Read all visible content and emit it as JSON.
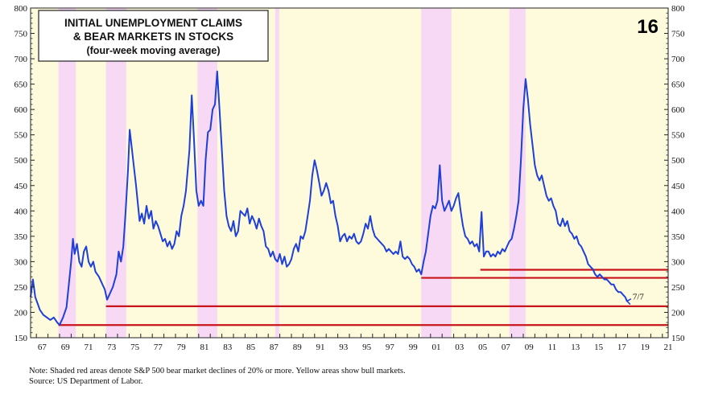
{
  "chart_data": {
    "type": "line",
    "title": "INITIAL UNEMPLOYMENT CLAIMS",
    "title_line2": "& BEAR MARKETS IN STOCKS",
    "subtitle": "(four-week moving average)",
    "page_number": "16",
    "end_label": "7/7",
    "note": "Note: Shaded red areas denote S&P 500 bear market declines of 20% or more. Yellow areas show bull markets.",
    "source": "Source: US Department of Labor.",
    "ylim": [
      150,
      800
    ],
    "y_ticks": [
      "150",
      "200",
      "250",
      "300",
      "350",
      "400",
      "450",
      "500",
      "550",
      "600",
      "650",
      "700",
      "750",
      "800"
    ],
    "xlim": [
      1966.5,
      2021.5
    ],
    "x_tick_labels": [
      "67",
      "69",
      "71",
      "73",
      "75",
      "77",
      "79",
      "81",
      "83",
      "85",
      "87",
      "89",
      "91",
      "93",
      "95",
      "97",
      "99",
      "01",
      "03",
      "05",
      "07",
      "09",
      "11",
      "13",
      "15",
      "17",
      "19",
      "21"
    ],
    "colors": {
      "bull": "#fdfbdc",
      "bear": "#f7d9f5",
      "line": "#1f3fd8",
      "ref_line": "#c8141b"
    },
    "bear_markets": [
      [
        1968.9,
        1970.4
      ],
      [
        1973.0,
        1974.75
      ],
      [
        1980.9,
        1982.6
      ],
      [
        1987.6,
        1987.95
      ],
      [
        2000.2,
        2002.8
      ],
      [
        2007.8,
        2009.2
      ]
    ],
    "reference_lines": [
      {
        "y": 175,
        "x_start": 1968.9,
        "x_end": 2021.5
      },
      {
        "y": 212,
        "x_start": 1973.0,
        "x_end": 2021.5
      },
      {
        "y": 268,
        "x_start": 2000.2,
        "x_end": 2021.5
      },
      {
        "y": 284,
        "x_start": 2005.3,
        "x_end": 2021.5
      }
    ],
    "series": [
      {
        "values": [
          [
            1966.5,
            230
          ],
          [
            1966.7,
            265
          ],
          [
            1966.9,
            230
          ],
          [
            1967.1,
            218
          ],
          [
            1967.3,
            205
          ],
          [
            1967.6,
            195
          ],
          [
            1967.9,
            190
          ],
          [
            1968.2,
            185
          ],
          [
            1968.5,
            190
          ],
          [
            1968.8,
            180
          ],
          [
            1969.0,
            175
          ],
          [
            1969.3,
            190
          ],
          [
            1969.6,
            210
          ],
          [
            1969.8,
            255
          ],
          [
            1970.0,
            300
          ],
          [
            1970.15,
            345
          ],
          [
            1970.3,
            315
          ],
          [
            1970.5,
            335
          ],
          [
            1970.7,
            300
          ],
          [
            1970.9,
            290
          ],
          [
            1971.1,
            320
          ],
          [
            1971.3,
            330
          ],
          [
            1971.5,
            300
          ],
          [
            1971.7,
            290
          ],
          [
            1971.9,
            300
          ],
          [
            1972.1,
            280
          ],
          [
            1972.4,
            270
          ],
          [
            1972.7,
            255
          ],
          [
            1972.9,
            245
          ],
          [
            1973.1,
            225
          ],
          [
            1973.3,
            235
          ],
          [
            1973.6,
            250
          ],
          [
            1973.9,
            275
          ],
          [
            1974.1,
            320
          ],
          [
            1974.3,
            300
          ],
          [
            1974.5,
            330
          ],
          [
            1974.7,
            400
          ],
          [
            1974.9,
            480
          ],
          [
            1975.05,
            560
          ],
          [
            1975.2,
            530
          ],
          [
            1975.35,
            500
          ],
          [
            1975.6,
            450
          ],
          [
            1975.9,
            380
          ],
          [
            1976.1,
            395
          ],
          [
            1976.3,
            375
          ],
          [
            1976.5,
            410
          ],
          [
            1976.7,
            385
          ],
          [
            1976.9,
            400
          ],
          [
            1977.1,
            365
          ],
          [
            1977.3,
            380
          ],
          [
            1977.5,
            370
          ],
          [
            1977.7,
            355
          ],
          [
            1977.9,
            340
          ],
          [
            1978.1,
            345
          ],
          [
            1978.3,
            330
          ],
          [
            1978.5,
            340
          ],
          [
            1978.7,
            325
          ],
          [
            1978.9,
            335
          ],
          [
            1979.1,
            360
          ],
          [
            1979.3,
            350
          ],
          [
            1979.5,
            390
          ],
          [
            1979.7,
            410
          ],
          [
            1979.9,
            440
          ],
          [
            1980.2,
            520
          ],
          [
            1980.4,
            628
          ],
          [
            1980.6,
            540
          ],
          [
            1980.8,
            440
          ],
          [
            1981.0,
            410
          ],
          [
            1981.2,
            420
          ],
          [
            1981.4,
            410
          ],
          [
            1981.6,
            500
          ],
          [
            1981.8,
            555
          ],
          [
            1982.0,
            560
          ],
          [
            1982.2,
            600
          ],
          [
            1982.4,
            610
          ],
          [
            1982.6,
            675
          ],
          [
            1982.8,
            600
          ],
          [
            1983.0,
            520
          ],
          [
            1983.2,
            440
          ],
          [
            1983.4,
            390
          ],
          [
            1983.6,
            370
          ],
          [
            1983.8,
            360
          ],
          [
            1984.0,
            380
          ],
          [
            1984.2,
            350
          ],
          [
            1984.4,
            360
          ],
          [
            1984.6,
            400
          ],
          [
            1984.8,
            395
          ],
          [
            1985.0,
            390
          ],
          [
            1985.2,
            405
          ],
          [
            1985.4,
            375
          ],
          [
            1985.6,
            390
          ],
          [
            1985.8,
            380
          ],
          [
            1986.0,
            365
          ],
          [
            1986.2,
            385
          ],
          [
            1986.4,
            370
          ],
          [
            1986.6,
            360
          ],
          [
            1986.8,
            330
          ],
          [
            1987.0,
            325
          ],
          [
            1987.2,
            310
          ],
          [
            1987.4,
            320
          ],
          [
            1987.6,
            305
          ],
          [
            1987.8,
            300
          ],
          [
            1988.0,
            315
          ],
          [
            1988.2,
            295
          ],
          [
            1988.4,
            310
          ],
          [
            1988.6,
            290
          ],
          [
            1988.8,
            295
          ],
          [
            1989.0,
            305
          ],
          [
            1989.2,
            325
          ],
          [
            1989.4,
            335
          ],
          [
            1989.6,
            320
          ],
          [
            1989.8,
            350
          ],
          [
            1990.0,
            345
          ],
          [
            1990.2,
            360
          ],
          [
            1990.4,
            390
          ],
          [
            1990.6,
            420
          ],
          [
            1990.8,
            470
          ],
          [
            1991.0,
            500
          ],
          [
            1991.2,
            480
          ],
          [
            1991.4,
            455
          ],
          [
            1991.6,
            430
          ],
          [
            1991.8,
            440
          ],
          [
            1992.0,
            455
          ],
          [
            1992.2,
            440
          ],
          [
            1992.4,
            415
          ],
          [
            1992.6,
            420
          ],
          [
            1992.8,
            390
          ],
          [
            1993.0,
            370
          ],
          [
            1993.2,
            340
          ],
          [
            1993.4,
            350
          ],
          [
            1993.6,
            355
          ],
          [
            1993.8,
            340
          ],
          [
            1994.0,
            350
          ],
          [
            1994.2,
            345
          ],
          [
            1994.4,
            355
          ],
          [
            1994.6,
            340
          ],
          [
            1994.8,
            335
          ],
          [
            1995.0,
            340
          ],
          [
            1995.2,
            355
          ],
          [
            1995.4,
            375
          ],
          [
            1995.6,
            365
          ],
          [
            1995.8,
            390
          ],
          [
            1996.0,
            365
          ],
          [
            1996.2,
            350
          ],
          [
            1996.4,
            345
          ],
          [
            1996.6,
            340
          ],
          [
            1996.8,
            335
          ],
          [
            1997.0,
            330
          ],
          [
            1997.2,
            320
          ],
          [
            1997.4,
            325
          ],
          [
            1997.6,
            320
          ],
          [
            1997.8,
            315
          ],
          [
            1998.0,
            320
          ],
          [
            1998.2,
            315
          ],
          [
            1998.4,
            340
          ],
          [
            1998.6,
            310
          ],
          [
            1998.8,
            305
          ],
          [
            1999.0,
            310
          ],
          [
            1999.2,
            305
          ],
          [
            1999.4,
            295
          ],
          [
            1999.6,
            290
          ],
          [
            1999.8,
            280
          ],
          [
            2000.0,
            285
          ],
          [
            2000.2,
            275
          ],
          [
            2000.4,
            300
          ],
          [
            2000.6,
            320
          ],
          [
            2000.8,
            355
          ],
          [
            2001.0,
            390
          ],
          [
            2001.2,
            410
          ],
          [
            2001.4,
            405
          ],
          [
            2001.6,
            420
          ],
          [
            2001.8,
            490
          ],
          [
            2002.0,
            420
          ],
          [
            2002.2,
            400
          ],
          [
            2002.4,
            410
          ],
          [
            2002.6,
            420
          ],
          [
            2002.8,
            400
          ],
          [
            2003.0,
            410
          ],
          [
            2003.2,
            425
          ],
          [
            2003.4,
            435
          ],
          [
            2003.6,
            400
          ],
          [
            2003.8,
            370
          ],
          [
            2004.0,
            350
          ],
          [
            2004.2,
            345
          ],
          [
            2004.4,
            335
          ],
          [
            2004.6,
            340
          ],
          [
            2004.8,
            330
          ],
          [
            2005.0,
            335
          ],
          [
            2005.2,
            320
          ],
          [
            2005.4,
            398
          ],
          [
            2005.6,
            310
          ],
          [
            2005.8,
            320
          ],
          [
            2006.0,
            320
          ],
          [
            2006.2,
            310
          ],
          [
            2006.4,
            315
          ],
          [
            2006.6,
            310
          ],
          [
            2006.8,
            320
          ],
          [
            2007.0,
            315
          ],
          [
            2007.2,
            325
          ],
          [
            2007.4,
            320
          ],
          [
            2007.6,
            330
          ],
          [
            2007.8,
            340
          ],
          [
            2008.0,
            345
          ],
          [
            2008.2,
            365
          ],
          [
            2008.4,
            390
          ],
          [
            2008.6,
            420
          ],
          [
            2008.8,
            500
          ],
          [
            2009.0,
            600
          ],
          [
            2009.2,
            660
          ],
          [
            2009.4,
            620
          ],
          [
            2009.6,
            570
          ],
          [
            2009.8,
            530
          ],
          [
            2010.0,
            490
          ],
          [
            2010.2,
            470
          ],
          [
            2010.4,
            460
          ],
          [
            2010.6,
            470
          ],
          [
            2010.8,
            450
          ],
          [
            2011.0,
            430
          ],
          [
            2011.2,
            420
          ],
          [
            2011.4,
            425
          ],
          [
            2011.6,
            410
          ],
          [
            2011.8,
            400
          ],
          [
            2012.0,
            375
          ],
          [
            2012.2,
            370
          ],
          [
            2012.4,
            385
          ],
          [
            2012.6,
            370
          ],
          [
            2012.8,
            380
          ],
          [
            2013.0,
            360
          ],
          [
            2013.2,
            355
          ],
          [
            2013.4,
            345
          ],
          [
            2013.6,
            350
          ],
          [
            2013.8,
            335
          ],
          [
            2014.0,
            330
          ],
          [
            2014.2,
            320
          ],
          [
            2014.4,
            310
          ],
          [
            2014.6,
            295
          ],
          [
            2014.8,
            290
          ],
          [
            2015.0,
            285
          ],
          [
            2015.2,
            275
          ],
          [
            2015.4,
            270
          ],
          [
            2015.6,
            275
          ],
          [
            2015.8,
            270
          ],
          [
            2016.0,
            265
          ],
          [
            2016.2,
            265
          ],
          [
            2016.4,
            260
          ],
          [
            2016.6,
            255
          ],
          [
            2016.8,
            255
          ],
          [
            2017.0,
            245
          ],
          [
            2017.2,
            240
          ],
          [
            2017.4,
            240
          ],
          [
            2017.6,
            235
          ],
          [
            2017.8,
            230
          ],
          [
            2017.95,
            222
          ]
        ]
      }
    ]
  }
}
